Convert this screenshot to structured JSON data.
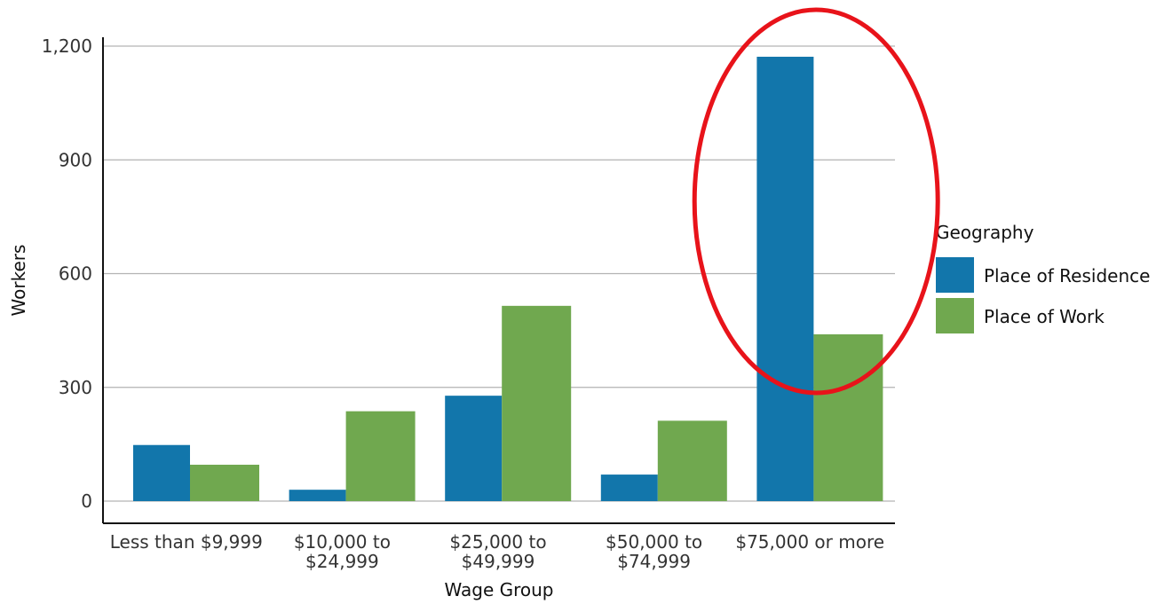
{
  "chart_data": {
    "type": "bar",
    "xlabel": "Wage Group",
    "ylabel": "Workers",
    "ylim": [
      0,
      1200
    ],
    "yticks": [
      0,
      300,
      600,
      900,
      1200
    ],
    "ytick_labels": [
      "0",
      "300",
      "600",
      "900",
      "1,200"
    ],
    "categories": [
      [
        "Less than $9,999"
      ],
      [
        "$10,000 to",
        "$24,999"
      ],
      [
        "$25,000 to",
        "$49,999"
      ],
      [
        "$50,000 to",
        "$74,999"
      ],
      [
        "$75,000 or more"
      ]
    ],
    "series": [
      {
        "name": "Place of Residence",
        "color": "#1276ab",
        "values": [
          148,
          30,
          278,
          70,
          1172
        ]
      },
      {
        "name": "Place of Work",
        "color": "#70a84f",
        "values": [
          96,
          237,
          515,
          212,
          440
        ]
      }
    ],
    "legend": {
      "title": "Geography",
      "position": "right"
    },
    "grid": true,
    "annotation": {
      "shape": "ellipse",
      "color": "#e8131a",
      "target_category_index": 4
    }
  }
}
